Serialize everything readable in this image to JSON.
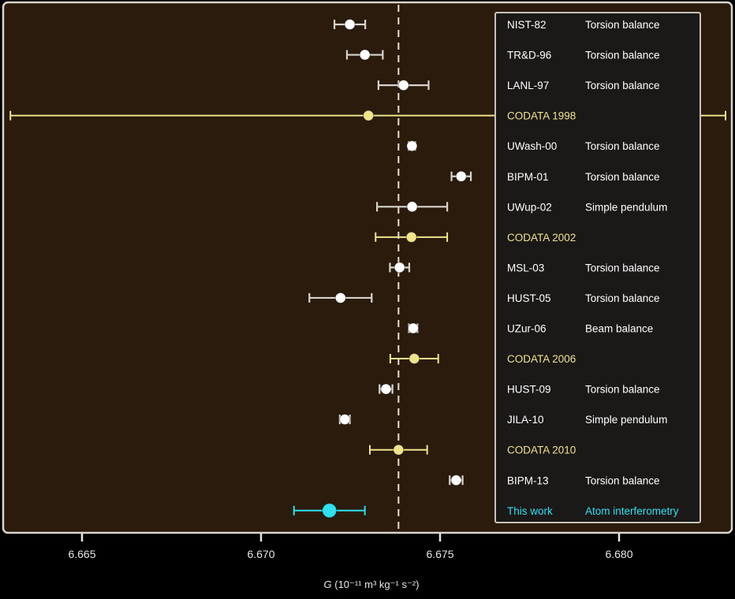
{
  "chart_data": {
    "type": "scatter",
    "subtype": "forest-plot-with-error-bars",
    "title": "",
    "xlabel": "G (10⁻¹¹ m³ kg⁻¹ s⁻²)",
    "xlabel_italic_part": "G",
    "xlabel_rest": " (10⁻¹¹ m³ kg⁻¹ s⁻²)",
    "ylabel": "",
    "xlim": [
      6.6637,
      6.6836
    ],
    "xticks": [
      6.665,
      6.67,
      6.675,
      6.68
    ],
    "xtick_labels": [
      "6.665",
      "6.670",
      "6.675",
      "6.680"
    ],
    "grid": false,
    "reference_line": {
      "value": 6.67384,
      "style": "dashed",
      "color": "#e8e0d0"
    },
    "legend_position": "right",
    "colors": {
      "background": "#2a1b0c",
      "frame": "#d8d4cc",
      "legend_background": "#1b1918",
      "measurement": "#ffffff",
      "codata": "#efe38c",
      "this_work": "#2ee0f0"
    },
    "points": [
      {
        "label": "NIST-82",
        "method": "Torsion balance",
        "group": "measurement",
        "value": 6.67248,
        "error": 0.00043
      },
      {
        "label": "TR&D-96",
        "method": "Torsion balance",
        "group": "measurement",
        "value": 6.6729,
        "error": 0.0005
      },
      {
        "label": "LANL-97",
        "method": "Torsion balance",
        "group": "measurement",
        "value": 6.67398,
        "error": 0.0007
      },
      {
        "label": "CODATA 1998",
        "method": "",
        "group": "codata",
        "value": 6.673,
        "error": 0.01
      },
      {
        "label": "UWash-00",
        "method": "Torsion balance",
        "group": "measurement",
        "value": 6.674215,
        "error": 9.2e-05
      },
      {
        "label": "BIPM-01",
        "method": "Torsion balance",
        "group": "measurement",
        "value": 6.67559,
        "error": 0.00027
      },
      {
        "label": "UWup-02",
        "method": "Simple pendulum",
        "group": "measurement",
        "value": 6.67422,
        "error": 0.00098
      },
      {
        "label": "CODATA 2002",
        "method": "",
        "group": "codata",
        "value": 6.6742,
        "error": 0.001
      },
      {
        "label": "MSL-03",
        "method": "Torsion balance",
        "group": "measurement",
        "value": 6.67387,
        "error": 0.00027
      },
      {
        "label": "HUST-05",
        "method": "Torsion balance",
        "group": "measurement",
        "value": 6.67222,
        "error": 0.00087
      },
      {
        "label": "UZur-06",
        "method": "Beam balance",
        "group": "measurement",
        "value": 6.67425,
        "error": 0.00012
      },
      {
        "label": "CODATA 2006",
        "method": "",
        "group": "codata",
        "value": 6.67428,
        "error": 0.00067
      },
      {
        "label": "HUST-09",
        "method": "Torsion balance",
        "group": "measurement",
        "value": 6.67349,
        "error": 0.00018
      },
      {
        "label": "JILA-10",
        "method": "Simple pendulum",
        "group": "measurement",
        "value": 6.67234,
        "error": 0.00014
      },
      {
        "label": "CODATA 2010",
        "method": "",
        "group": "codata",
        "value": 6.67384,
        "error": 0.0008
      },
      {
        "label": "BIPM-13",
        "method": "Torsion balance",
        "group": "measurement",
        "value": 6.67545,
        "error": 0.00018
      },
      {
        "label": "This work",
        "method": "Atom interferometry",
        "group": "this_work",
        "value": 6.67191,
        "error": 0.00099
      }
    ]
  }
}
